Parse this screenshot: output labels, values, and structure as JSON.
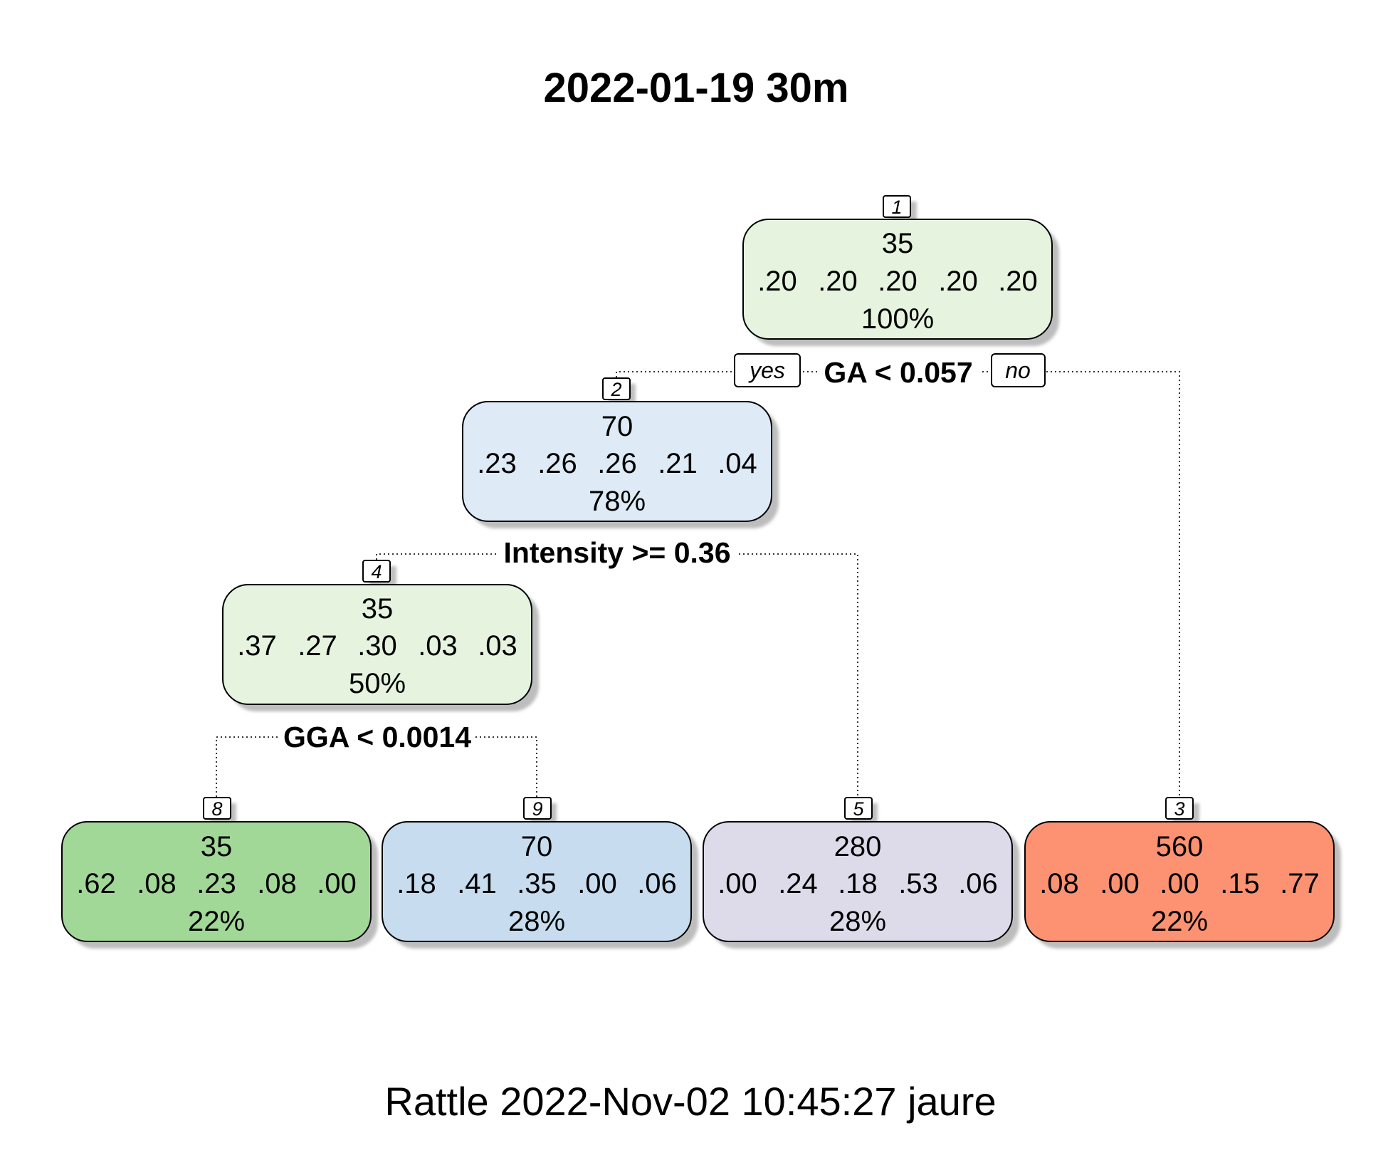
{
  "title": "2022-01-19 30m",
  "footer": "Rattle 2022-Nov-02 10:45:27 jaure",
  "labels": {
    "yes": "yes",
    "no": "no"
  },
  "nodes": {
    "n1": {
      "id": "1",
      "label": "35",
      "probs": [
        ".20",
        ".20",
        ".20",
        ".20",
        ".20"
      ],
      "pct": "100%",
      "color": "#e6f4df"
    },
    "n2": {
      "id": "2",
      "label": "70",
      "probs": [
        ".23",
        ".26",
        ".26",
        ".21",
        ".04"
      ],
      "pct": "78%",
      "color": "#deeaf6"
    },
    "n4": {
      "id": "4",
      "label": "35",
      "probs": [
        ".37",
        ".27",
        ".30",
        ".03",
        ".03"
      ],
      "pct": "50%",
      "color": "#e6f4df"
    },
    "n8": {
      "id": "8",
      "label": "35",
      "probs": [
        ".62",
        ".08",
        ".23",
        ".08",
        ".00"
      ],
      "pct": "22%",
      "color": "#a2d897"
    },
    "n9": {
      "id": "9",
      "label": "70",
      "probs": [
        ".18",
        ".41",
        ".35",
        ".00",
        ".06"
      ],
      "pct": "28%",
      "color": "#c7dcef"
    },
    "n5": {
      "id": "5",
      "label": "280",
      "probs": [
        ".00",
        ".24",
        ".18",
        ".53",
        ".06"
      ],
      "pct": "28%",
      "color": "#dddbea"
    },
    "n3": {
      "id": "3",
      "label": "560",
      "probs": [
        ".08",
        ".00",
        ".00",
        ".15",
        ".77"
      ],
      "pct": "22%",
      "color": "#fc9271"
    }
  },
  "splits": {
    "s1": "GA < 0.057",
    "s2": "Intensity >= 0.36",
    "s4": "GGA < 0.0014"
  }
}
